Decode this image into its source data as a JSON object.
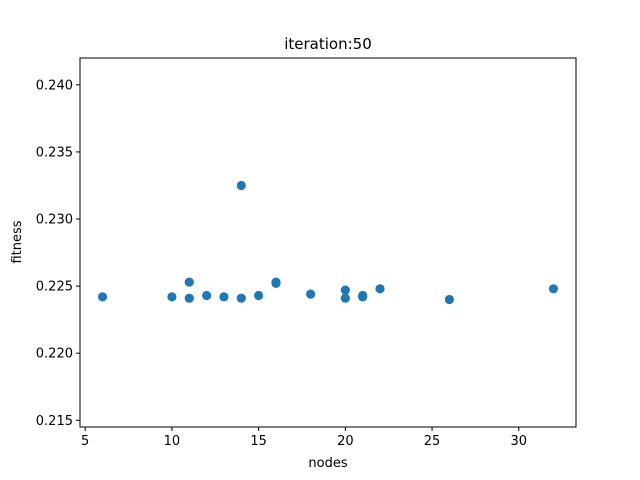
{
  "chart_data": {
    "type": "scatter",
    "title": "iteration:50",
    "xlabel": "nodes",
    "ylabel": "fitness",
    "xlim": [
      4.7,
      33.3
    ],
    "ylim": [
      0.2145,
      0.242
    ],
    "xticks": [
      "5",
      "10",
      "15",
      "20",
      "25",
      "30"
    ],
    "yticks": [
      "0.215",
      "0.220",
      "0.225",
      "0.230",
      "0.235",
      "0.240"
    ],
    "grid": false,
    "marker_color": "#1f77b4",
    "points": [
      {
        "x": 6,
        "y": 0.2242
      },
      {
        "x": 10,
        "y": 0.2242
      },
      {
        "x": 11,
        "y": 0.2241
      },
      {
        "x": 11,
        "y": 0.2253
      },
      {
        "x": 12,
        "y": 0.2243
      },
      {
        "x": 13,
        "y": 0.2242
      },
      {
        "x": 14,
        "y": 0.2241
      },
      {
        "x": 14,
        "y": 0.2325
      },
      {
        "x": 15,
        "y": 0.2243
      },
      {
        "x": 16,
        "y": 0.2252
      },
      {
        "x": 16,
        "y": 0.2253
      },
      {
        "x": 18,
        "y": 0.2244
      },
      {
        "x": 20,
        "y": 0.2247
      },
      {
        "x": 20,
        "y": 0.2241
      },
      {
        "x": 21,
        "y": 0.2243
      },
      {
        "x": 21,
        "y": 0.2242
      },
      {
        "x": 22,
        "y": 0.2248
      },
      {
        "x": 26,
        "y": 0.224
      },
      {
        "x": 32,
        "y": 0.2248
      }
    ]
  }
}
